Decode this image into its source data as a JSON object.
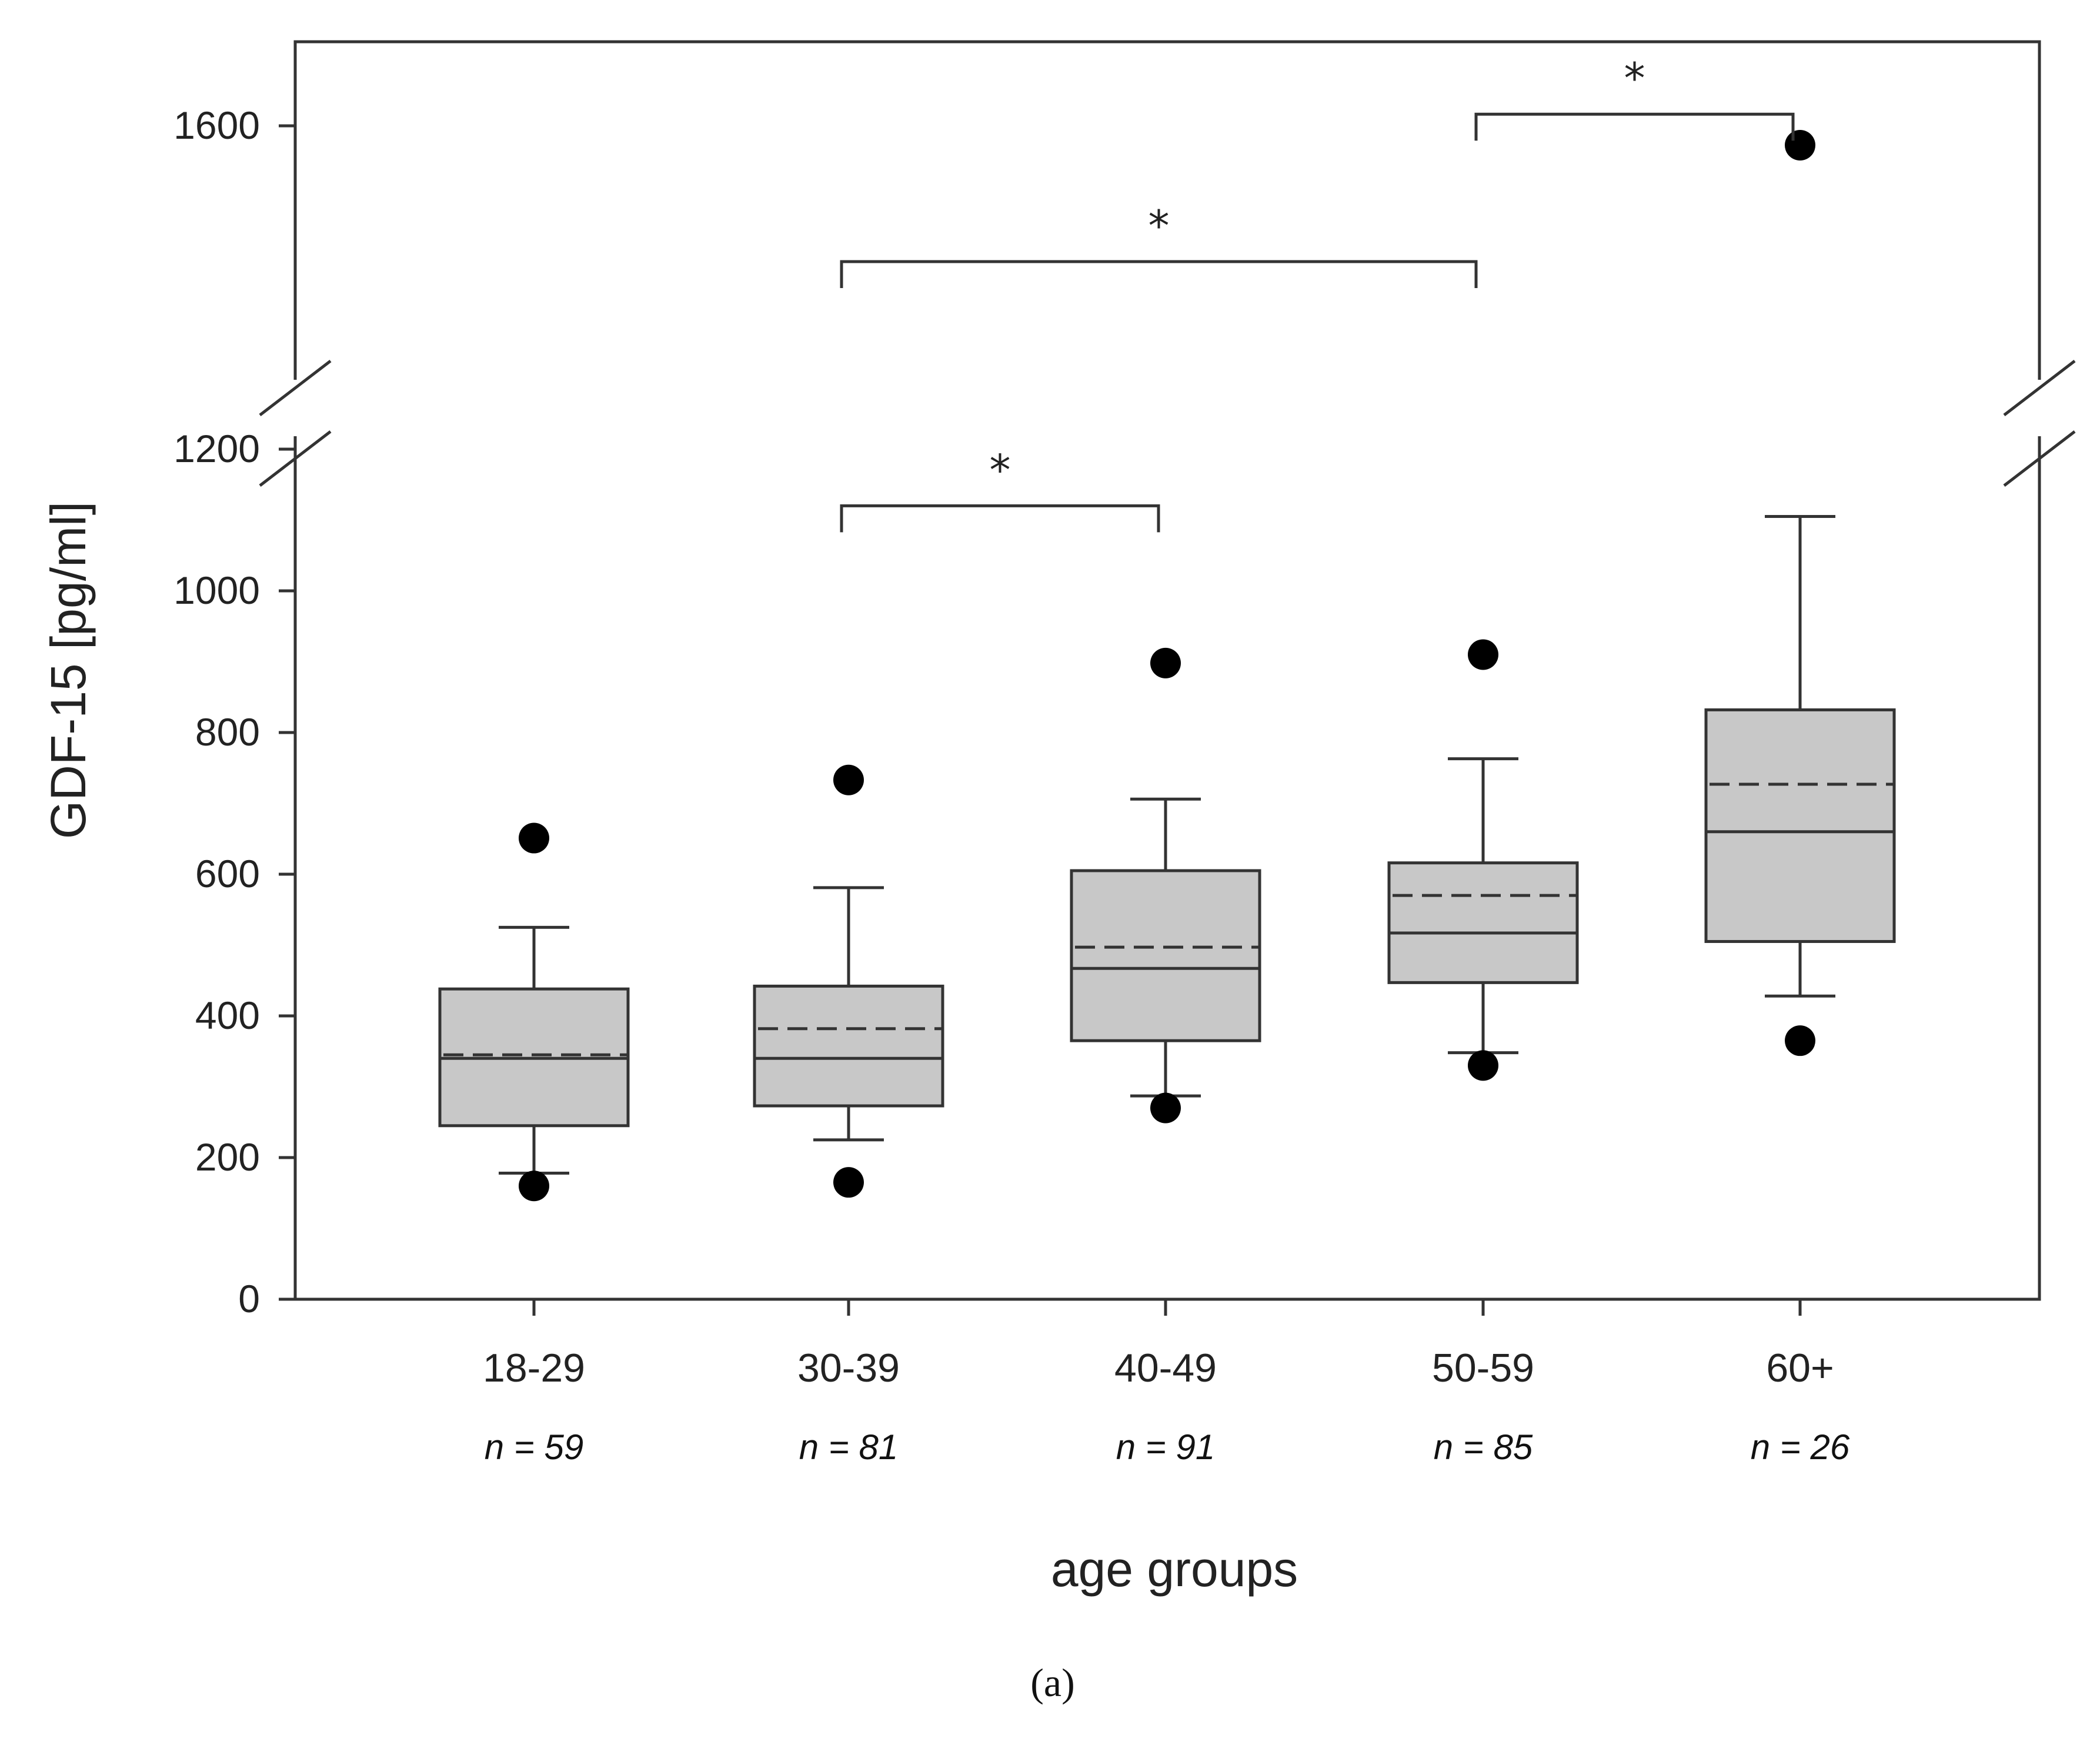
{
  "chart_data": {
    "type": "box",
    "ylabel": "GDF-15 [pg/ml]",
    "xlabel": "age groups",
    "caption": "(a)",
    "y_axis": {
      "lower_segment": {
        "range": [
          0,
          1200
        ],
        "ticks": [
          0,
          200,
          400,
          600,
          800,
          1000,
          1200
        ]
      },
      "upper_segment": {
        "range": [
          1200,
          1700
        ],
        "ticks": [
          1600
        ]
      },
      "axis_break_between": [
        1200,
        1600
      ]
    },
    "tick_labels": {
      "t0": "0",
      "t200": "200",
      "t400": "400",
      "t600": "600",
      "t800": "800",
      "t1000": "1000",
      "t1200": "1200",
      "t1600": "1600"
    },
    "categories": [
      "18-29",
      "30-39",
      "40-49",
      "50-59",
      "60+"
    ],
    "groups": [
      {
        "label": "18-29",
        "n_label": "n = 59",
        "q1": 245,
        "median": 340,
        "mean": 345,
        "q3": 438,
        "whisker_low": 178,
        "whisker_high": 525,
        "outliers": [
          160,
          651
        ]
      },
      {
        "label": "30-39",
        "n_label": "n = 81",
        "q1": 273,
        "median": 340,
        "mean": 382,
        "q3": 442,
        "whisker_low": 225,
        "whisker_high": 581,
        "outliers": [
          165,
          733
        ]
      },
      {
        "label": "40-49",
        "n_label": "n = 91",
        "q1": 365,
        "median": 467,
        "mean": 497,
        "q3": 605,
        "whisker_low": 287,
        "whisker_high": 706,
        "outliers": [
          270,
          898
        ]
      },
      {
        "label": "50-59",
        "n_label": "n = 85",
        "q1": 447,
        "median": 517,
        "mean": 570,
        "q3": 616,
        "whisker_low": 348,
        "whisker_high": 763,
        "outliers": [
          330,
          910
        ]
      },
      {
        "label": "60+",
        "n_label": "n = 26",
        "q1": 505,
        "median": 660,
        "mean": 727,
        "q3": 832,
        "whisker_low": 428,
        "whisker_high": 1105,
        "outliers": [
          365,
          1550
        ]
      }
    ],
    "significance": [
      {
        "from": 1,
        "to": 2,
        "at": 1120,
        "label": "*"
      },
      {
        "from": 1,
        "to": 3,
        "at": 1250,
        "label": "*"
      },
      {
        "from": 3,
        "to": 4,
        "at": 1630,
        "label": "*"
      }
    ]
  }
}
